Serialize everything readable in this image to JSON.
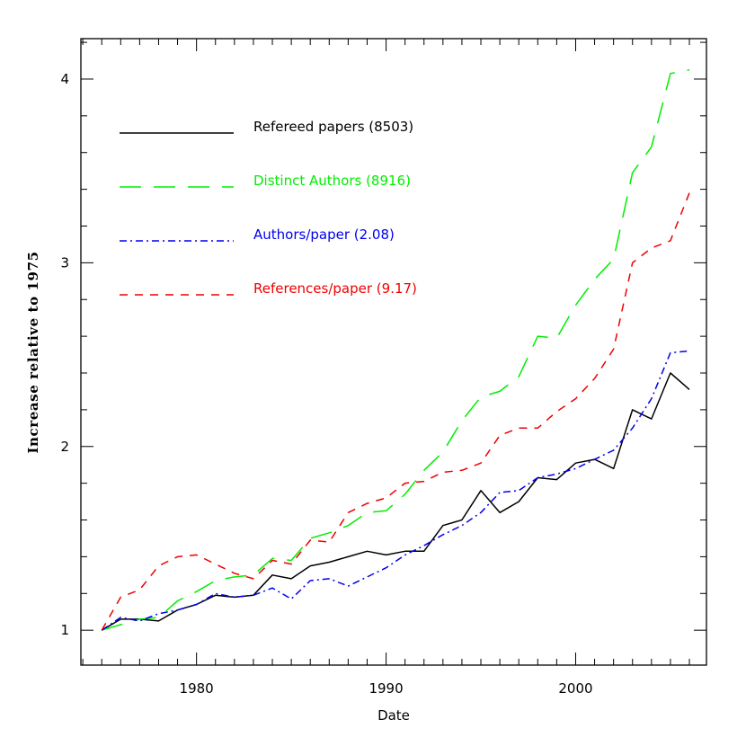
{
  "chart_data": {
    "type": "line",
    "title": "",
    "xlabel": "Date",
    "ylabel": "Increase relative to 1975",
    "xlim": [
      1973.9,
      2006.9
    ],
    "ylim": [
      0.81,
      4.22
    ],
    "xticks": [
      1980,
      1990,
      2000
    ],
    "yticks": [
      1,
      2,
      3,
      4
    ],
    "grid": false,
    "legend_position": "top-left",
    "series": [
      {
        "name": "Refereed papers (8503)",
        "color": "#000000",
        "dash": "solid",
        "points": [
          [
            1975,
            1.0
          ],
          [
            1976,
            1.06
          ],
          [
            1977,
            1.06
          ],
          [
            1978,
            1.05
          ],
          [
            1979,
            1.11
          ],
          [
            1980,
            1.14
          ],
          [
            1981,
            1.19
          ],
          [
            1982,
            1.18
          ],
          [
            1983,
            1.19
          ],
          [
            1984,
            1.3
          ],
          [
            1985,
            1.28
          ],
          [
            1986,
            1.35
          ],
          [
            1987,
            1.37
          ],
          [
            1988,
            1.4
          ],
          [
            1989,
            1.43
          ],
          [
            1990,
            1.41
          ],
          [
            1991,
            1.43
          ],
          [
            1992,
            1.43
          ],
          [
            1993,
            1.57
          ],
          [
            1994,
            1.6
          ],
          [
            1995,
            1.76
          ],
          [
            1996,
            1.64
          ],
          [
            1997,
            1.7
          ],
          [
            1998,
            1.83
          ],
          [
            1999,
            1.82
          ],
          [
            2000,
            1.91
          ],
          [
            2001,
            1.93
          ],
          [
            2002,
            1.88
          ],
          [
            2003,
            2.2
          ],
          [
            2004,
            2.15
          ],
          [
            2005,
            2.4
          ],
          [
            2006,
            2.31
          ]
        ]
      },
      {
        "name": "Distinct Authors (8916)",
        "color": "#00ee00",
        "dash": "long-dash",
        "points": [
          [
            1975,
            1.0
          ],
          [
            1976,
            1.03
          ],
          [
            1977,
            1.06
          ],
          [
            1978,
            1.07
          ],
          [
            1979,
            1.16
          ],
          [
            1980,
            1.21
          ],
          [
            1981,
            1.27
          ],
          [
            1982,
            1.29
          ],
          [
            1983,
            1.3
          ],
          [
            1984,
            1.39
          ],
          [
            1985,
            1.38
          ],
          [
            1986,
            1.5
          ],
          [
            1987,
            1.53
          ],
          [
            1988,
            1.57
          ],
          [
            1989,
            1.64
          ],
          [
            1990,
            1.65
          ],
          [
            1991,
            1.74
          ],
          [
            1992,
            1.87
          ],
          [
            1993,
            1.97
          ],
          [
            1994,
            2.14
          ],
          [
            1995,
            2.27
          ],
          [
            1996,
            2.3
          ],
          [
            1997,
            2.38
          ],
          [
            1998,
            2.6
          ],
          [
            1999,
            2.59
          ],
          [
            2000,
            2.77
          ],
          [
            2001,
            2.91
          ],
          [
            2002,
            3.02
          ],
          [
            2003,
            3.49
          ],
          [
            2004,
            3.63
          ],
          [
            2005,
            4.03
          ],
          [
            2006,
            4.05
          ]
        ]
      },
      {
        "name": "Authors/paper (2.08)",
        "color": "#0000ee",
        "dash": "dash-dot",
        "points": [
          [
            1975,
            1.0
          ],
          [
            1976,
            1.07
          ],
          [
            1977,
            1.05
          ],
          [
            1978,
            1.09
          ],
          [
            1979,
            1.11
          ],
          [
            1980,
            1.14
          ],
          [
            1981,
            1.2
          ],
          [
            1982,
            1.18
          ],
          [
            1983,
            1.19
          ],
          [
            1984,
            1.23
          ],
          [
            1985,
            1.17
          ],
          [
            1986,
            1.27
          ],
          [
            1987,
            1.28
          ],
          [
            1988,
            1.24
          ],
          [
            1989,
            1.29
          ],
          [
            1990,
            1.34
          ],
          [
            1991,
            1.41
          ],
          [
            1992,
            1.46
          ],
          [
            1993,
            1.52
          ],
          [
            1994,
            1.57
          ],
          [
            1995,
            1.64
          ],
          [
            1996,
            1.75
          ],
          [
            1997,
            1.76
          ],
          [
            1998,
            1.83
          ],
          [
            1999,
            1.85
          ],
          [
            2000,
            1.88
          ],
          [
            2001,
            1.93
          ],
          [
            2002,
            1.98
          ],
          [
            2003,
            2.1
          ],
          [
            2004,
            2.26
          ],
          [
            2005,
            2.51
          ],
          [
            2006,
            2.52
          ]
        ]
      },
      {
        "name": "References/paper (9.17)",
        "color": "#ee0000",
        "dash": "short-dash",
        "points": [
          [
            1975,
            1.0
          ],
          [
            1976,
            1.18
          ],
          [
            1977,
            1.22
          ],
          [
            1978,
            1.35
          ],
          [
            1979,
            1.4
          ],
          [
            1980,
            1.41
          ],
          [
            1981,
            1.36
          ],
          [
            1982,
            1.31
          ],
          [
            1983,
            1.28
          ],
          [
            1984,
            1.38
          ],
          [
            1985,
            1.36
          ],
          [
            1986,
            1.49
          ],
          [
            1987,
            1.48
          ],
          [
            1988,
            1.64
          ],
          [
            1989,
            1.69
          ],
          [
            1990,
            1.72
          ],
          [
            1991,
            1.8
          ],
          [
            1992,
            1.81
          ],
          [
            1993,
            1.86
          ],
          [
            1994,
            1.87
          ],
          [
            1995,
            1.91
          ],
          [
            1996,
            2.06
          ],
          [
            1997,
            2.1
          ],
          [
            1998,
            2.1
          ],
          [
            1999,
            2.19
          ],
          [
            2000,
            2.26
          ],
          [
            2001,
            2.37
          ],
          [
            2002,
            2.53
          ],
          [
            2003,
            3.0
          ],
          [
            2004,
            3.08
          ],
          [
            2005,
            3.12
          ],
          [
            2006,
            3.38
          ]
        ]
      }
    ]
  }
}
